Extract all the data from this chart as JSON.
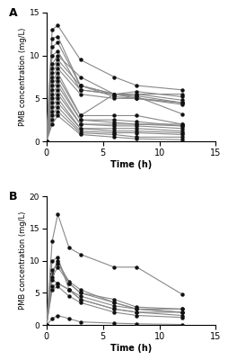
{
  "panel_A_times": [
    0,
    0.5,
    1,
    3,
    6,
    8,
    12
  ],
  "panel_A_values": [
    [
      0,
      13.0,
      13.5,
      9.5,
      7.5,
      6.5,
      6.0
    ],
    [
      0,
      12.0,
      12.2,
      6.5,
      5.5,
      5.8,
      5.2
    ],
    [
      0,
      11.0,
      11.5,
      6.5,
      5.5,
      5.5,
      4.8
    ],
    [
      0,
      10.0,
      10.5,
      6.0,
      5.5,
      5.3,
      4.5
    ],
    [
      0,
      9.0,
      10.0,
      7.5,
      5.5,
      5.0,
      4.5
    ],
    [
      0,
      8.5,
      9.5,
      6.5,
      5.2,
      5.0,
      4.3
    ],
    [
      0,
      8.0,
      9.0,
      6.0,
      5.5,
      5.5,
      5.5
    ],
    [
      0,
      7.5,
      8.5,
      5.5,
      5.0,
      5.0,
      4.5
    ],
    [
      0,
      7.0,
      8.0,
      3.0,
      3.0,
      3.0,
      2.0
    ],
    [
      0,
      6.5,
      7.5,
      3.0,
      5.5,
      5.2,
      3.2
    ],
    [
      0,
      6.0,
      7.0,
      2.5,
      2.5,
      2.3,
      1.8
    ],
    [
      0,
      5.5,
      6.5,
      2.5,
      2.2,
      2.0,
      1.8
    ],
    [
      0,
      5.0,
      6.0,
      2.0,
      2.0,
      2.0,
      2.0
    ],
    [
      0,
      4.5,
      5.5,
      2.0,
      1.8,
      1.8,
      1.5
    ],
    [
      0,
      4.0,
      5.0,
      1.5,
      1.5,
      1.5,
      1.2
    ],
    [
      0,
      3.5,
      4.5,
      1.5,
      1.2,
      1.2,
      1.0
    ],
    [
      0,
      3.0,
      4.0,
      1.2,
      1.0,
      1.0,
      0.8
    ],
    [
      0,
      2.5,
      3.5,
      1.0,
      0.8,
      0.5,
      0.5
    ],
    [
      0,
      2.0,
      3.0,
      0.8,
      0.5,
      0.3,
      0.2
    ]
  ],
  "panel_B_times": [
    0,
    0.5,
    1,
    2,
    3,
    6,
    8,
    12
  ],
  "panel_B_values": [
    [
      0,
      13.0,
      17.2,
      12.0,
      11.0,
      9.0,
      9.0,
      4.8
    ],
    [
      0,
      10.0,
      10.5,
      5.5,
      4.0,
      2.5,
      2.0,
      2.0
    ],
    [
      0,
      8.0,
      10.0,
      6.5,
      5.0,
      4.0,
      2.8,
      2.5
    ],
    [
      0,
      8.5,
      9.5,
      6.8,
      5.5,
      3.5,
      2.5,
      2.0
    ],
    [
      0,
      7.5,
      9.0,
      6.5,
      5.0,
      3.5,
      2.5,
      2.0
    ],
    [
      0,
      7.0,
      6.5,
      5.5,
      4.5,
      3.0,
      2.5,
      2.5
    ],
    [
      0,
      6.0,
      6.5,
      5.5,
      4.0,
      2.5,
      2.0,
      1.5
    ],
    [
      0,
      5.5,
      6.0,
      4.5,
      3.5,
      2.0,
      1.5,
      1.2
    ],
    [
      0,
      1.0,
      1.5,
      1.0,
      0.5,
      0.3,
      0.2,
      0.1
    ]
  ],
  "ylabel": "PMB concentration (mg/L)",
  "xlabel": "Time (h)",
  "panel_A_ylim": [
    0,
    15
  ],
  "panel_B_ylim": [
    0,
    20
  ],
  "panel_A_yticks": [
    0,
    5,
    10,
    15
  ],
  "panel_B_yticks": [
    0,
    5,
    10,
    15,
    20
  ],
  "xlim": [
    0,
    15
  ],
  "xticks": [
    0,
    5,
    10,
    15
  ],
  "line_color": "#888888",
  "marker_color": "#111111",
  "marker_size": 3.2,
  "linewidth": 0.8,
  "label_A": "A",
  "label_B": "B"
}
